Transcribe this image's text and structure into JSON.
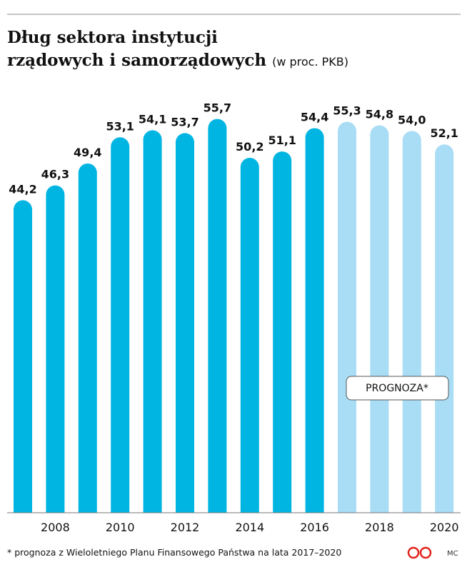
{
  "chart_data": {
    "type": "bar",
    "title": "Dług sektora instytucji",
    "title_line2": "rządowych i samorządowych",
    "subtitle": "(w proc. PKB)",
    "categories": [
      null,
      "2008",
      null,
      "2010",
      null,
      "2012",
      null,
      "2014",
      null,
      "2016",
      null,
      "2018",
      null,
      "2020"
    ],
    "values": [
      44.2,
      46.3,
      49.4,
      53.1,
      54.1,
      53.7,
      55.7,
      50.2,
      51.1,
      54.4,
      55.3,
      54.8,
      54.0,
      52.1
    ],
    "value_labels": [
      "44,2",
      "46,3",
      "49,4",
      "53,1",
      "54,1",
      "53,7",
      "55,7",
      "50,2",
      "51,1",
      "54,4",
      "55,3",
      "54,8",
      "54,0",
      "52,1"
    ],
    "colors": [
      "#00b5e2",
      "#00b5e2",
      "#00b5e2",
      "#00b5e2",
      "#00b5e2",
      "#00b5e2",
      "#00b5e2",
      "#00b5e2",
      "#00b5e2",
      "#00b5e2",
      "#a9ddf5",
      "#a9ddf5",
      "#a9ddf5",
      "#a9ddf5"
    ],
    "ylim": [
      0,
      70
    ],
    "annotation": "PROGNOZA*",
    "footnote": "* prognoza z Wieloletniego Planu Finansowego Państwa na lata 2017–2020",
    "credit": "MC"
  }
}
